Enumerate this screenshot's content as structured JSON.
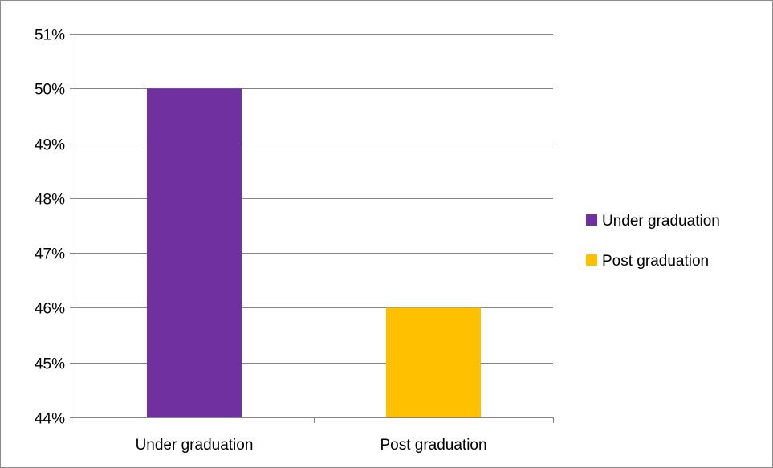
{
  "chart_data": {
    "type": "bar",
    "title": "",
    "xlabel": "",
    "ylabel": "",
    "categories": [
      "Under graduation",
      "Post graduation"
    ],
    "values": [
      0.5,
      0.46
    ],
    "colors": [
      "#7030A0",
      "#FFC000"
    ],
    "ylim": [
      0.44,
      0.51
    ],
    "yticks": [
      "44%",
      "45%",
      "46%",
      "47%",
      "48%",
      "49%",
      "50%",
      "51%"
    ],
    "grid": true,
    "legend": {
      "placement": "right",
      "entries": [
        "Under graduation",
        "Post graduation"
      ]
    }
  }
}
